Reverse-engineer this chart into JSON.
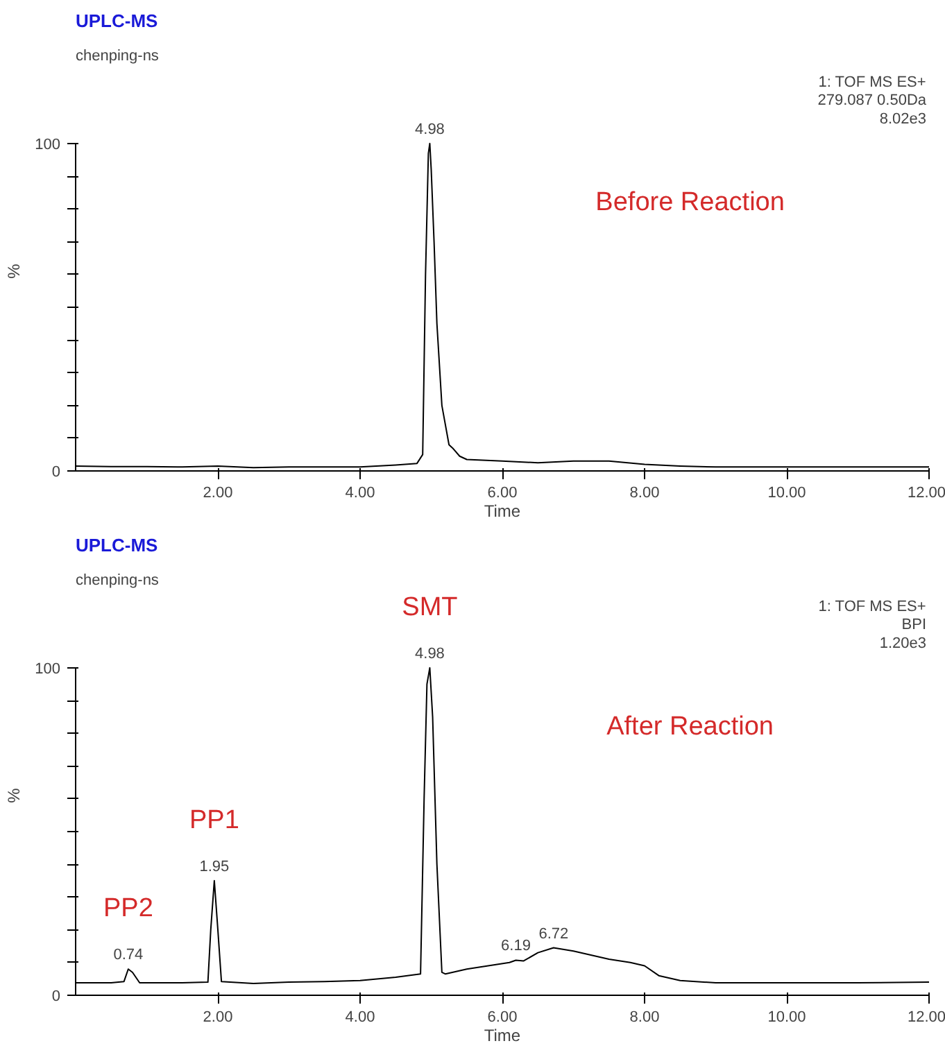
{
  "chart_data": [
    {
      "type": "line",
      "title": "UPLC-MS",
      "subtitle": "chenping-ns",
      "xlabel": "Time",
      "ylabel": "%",
      "xlim": [
        0,
        12
      ],
      "ylim": [
        0,
        100
      ],
      "xticks": [
        {
          "value": 2,
          "label": "2.00"
        },
        {
          "value": 4,
          "label": "4.00"
        },
        {
          "value": 6,
          "label": "6.00"
        },
        {
          "value": 8,
          "label": "8.00"
        },
        {
          "value": 10,
          "label": "10.00"
        },
        {
          "value": 12,
          "label": "12.00"
        }
      ],
      "yticks": [
        0,
        {
          "value": 10,
          "label": null
        },
        {
          "value": 20,
          "label": null
        },
        {
          "value": 30,
          "label": null
        },
        {
          "value": 40,
          "label": null
        },
        {
          "value": 50,
          "label": null
        },
        {
          "value": 60,
          "label": null
        },
        {
          "value": 70,
          "label": null
        },
        {
          "value": 80,
          "label": null
        },
        {
          "value": 90,
          "label": null
        },
        100
      ],
      "grid": false,
      "x": [
        0,
        0.5,
        1,
        1.5,
        2,
        2.5,
        3,
        3.5,
        4,
        4.5,
        4.8,
        4.88,
        4.92,
        4.96,
        4.98,
        5.0,
        5.04,
        5.08,
        5.15,
        5.25,
        5.3,
        5.4,
        5.5,
        6,
        6.5,
        7,
        7.5,
        8,
        8.5,
        9,
        10,
        11,
        12
      ],
      "series": [
        {
          "color": "#000000",
          "values": [
            1.5,
            1.3,
            1.3,
            1.2,
            1.5,
            1.0,
            1.2,
            1.2,
            1.2,
            1.8,
            2.3,
            5,
            60,
            97,
            100,
            92,
            70,
            45,
            20,
            8,
            7,
            4.5,
            3.5,
            3,
            2.5,
            3,
            3,
            2.0,
            1.5,
            1.2,
            1.2,
            1.2,
            1.2
          ]
        }
      ],
      "annotations": [
        "1: TOF MS ES+\n279.087 0.50Da\n8.02e3",
        "Before Reaction",
        {
          "text": "4.98",
          "x": 4.98,
          "y": 100
        }
      ]
    },
    {
      "type": "line",
      "title": "UPLC-MS",
      "subtitle": "chenping-ns",
      "xlabel": "Time",
      "ylabel": "%",
      "xlim": [
        0,
        12
      ],
      "ylim": [
        0,
        100
      ],
      "xticks": [
        {
          "value": 2,
          "label": "2.00"
        },
        {
          "value": 4,
          "label": "4.00"
        },
        {
          "value": 6,
          "label": "6.00"
        },
        {
          "value": 8,
          "label": "8.00"
        },
        {
          "value": 10,
          "label": "10.00"
        },
        {
          "value": 12,
          "label": "12.00"
        }
      ],
      "yticks": [
        0,
        {
          "value": 10,
          "label": null
        },
        {
          "value": 20,
          "label": null
        },
        {
          "value": 30,
          "label": null
        },
        {
          "value": 40,
          "label": null
        },
        {
          "value": 50,
          "label": null
        },
        {
          "value": 60,
          "label": null
        },
        {
          "value": 70,
          "label": null
        },
        {
          "value": 80,
          "label": null
        },
        {
          "value": 90,
          "label": null
        },
        100
      ],
      "grid": false,
      "x": [
        0,
        0.5,
        0.68,
        0.74,
        0.8,
        0.9,
        1.5,
        1.86,
        1.9,
        1.95,
        2.0,
        2.05,
        2.5,
        3,
        3.5,
        4,
        4.5,
        4.85,
        4.9,
        4.94,
        4.98,
        5.02,
        5.08,
        5.15,
        5.2,
        5.5,
        5.8,
        6.1,
        6.19,
        6.3,
        6.5,
        6.72,
        7,
        7.5,
        7.8,
        8.0,
        8.2,
        8.5,
        9,
        10,
        11,
        12
      ],
      "series": [
        {
          "color": "#000000",
          "values": [
            3.8,
            3.8,
            4.2,
            8,
            7,
            3.8,
            3.8,
            4,
            20,
            35,
            20,
            4.2,
            3.6,
            4,
            4.2,
            4.5,
            5.5,
            6.5,
            60,
            95,
            100,
            85,
            40,
            7,
            6.5,
            8,
            9,
            10,
            10.7,
            10.5,
            13,
            14.5,
            13.5,
            11,
            10,
            9,
            6,
            4.5,
            3.8,
            3.8,
            3.8,
            4
          ]
        }
      ],
      "annotations": [
        "1: TOF MS ES+\nBPI\n1.20e3",
        "After Reaction",
        {
          "text": "0.74",
          "x": 0.74,
          "y": 8
        },
        {
          "text": "1.95",
          "x": 1.95,
          "y": 35
        },
        {
          "text": "4.98",
          "x": 4.98,
          "y": 100
        },
        {
          "text": "6.19",
          "x": 6.19,
          "y": 10.7
        },
        {
          "text": "6.72",
          "x": 6.72,
          "y": 14.5
        },
        {
          "text": "PP2",
          "x": 0.74,
          "y": 8
        },
        {
          "text": "PP1",
          "x": 1.95,
          "y": 35
        },
        {
          "text": "SMT",
          "x": 4.98,
          "y": 100
        }
      ]
    }
  ]
}
